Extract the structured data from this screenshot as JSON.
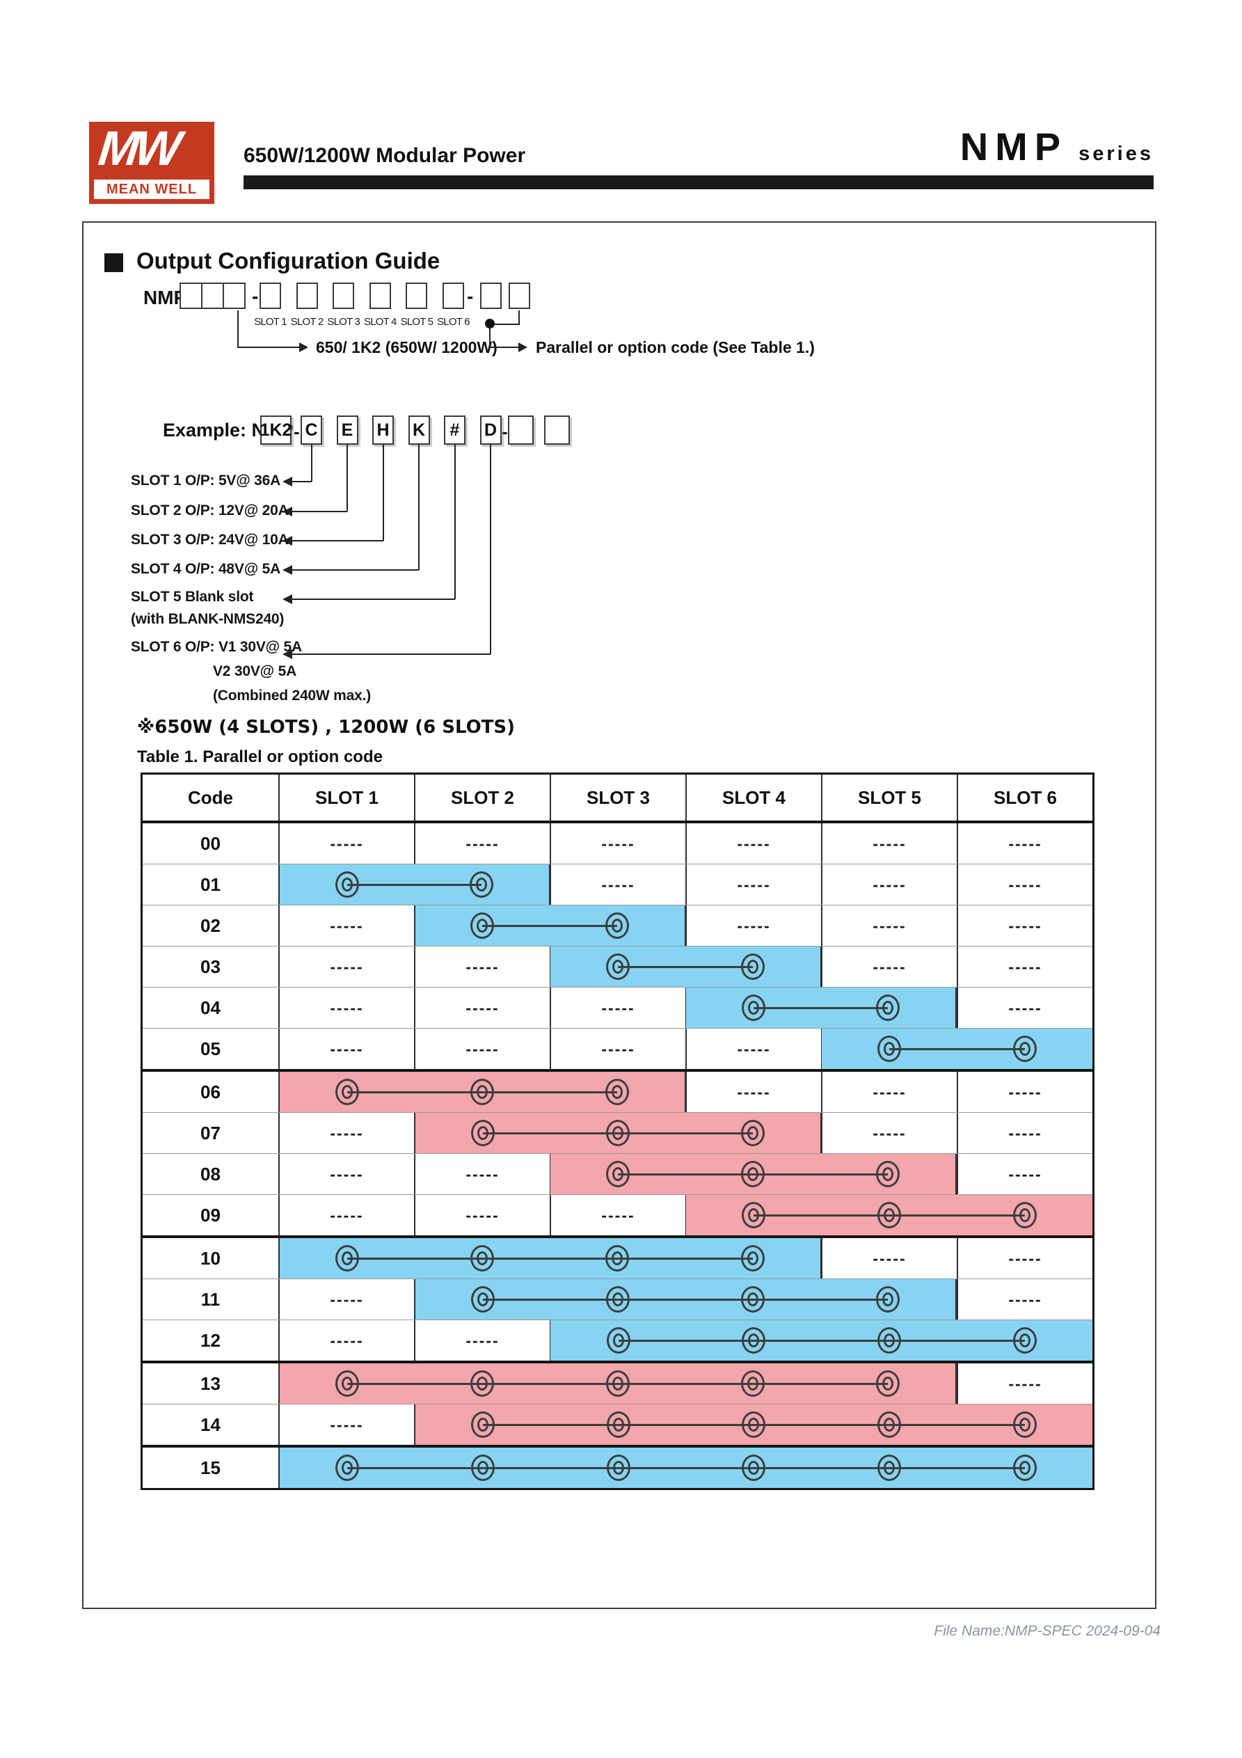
{
  "header": {
    "logo_mw": "MW",
    "logo_brand": "MEAN WELL",
    "subtitle": "650W/1200W Modular Power",
    "series_name": "NMP",
    "series_suffix": "series",
    "brand_color": "#c43a21"
  },
  "guide": {
    "section_title": "Output Configuration Guide",
    "model_prefix": "NMP",
    "dash": "-",
    "slot_labels": [
      "SLOT 1",
      "SLOT 2",
      "SLOT 3",
      "SLOT 4",
      "SLOT 5",
      "SLOT 6"
    ],
    "wattage_note": "650/ 1K2 (650W/ 1200W)",
    "parallel_note": "Parallel or option code (See Table 1.)"
  },
  "example": {
    "prefix": "Example: NMP",
    "model_code": "1K2",
    "dash": "-",
    "slot_codes": [
      "C",
      "E",
      "H",
      "K",
      "#",
      "D"
    ],
    "rows": [
      {
        "label": "SLOT 1  O/P: 5V@ 36A"
      },
      {
        "label": "SLOT 2  O/P: 12V@ 20A"
      },
      {
        "label": "SLOT 3  O/P: 24V@ 10A"
      },
      {
        "label": "SLOT 4  O/P: 48V@ 5A"
      },
      {
        "label": "SLOT 5  Blank slot",
        "sub": "(with BLANK-NMS240)"
      },
      {
        "label": "SLOT 6  O/P: V1  30V@ 5A",
        "sub": "V2  30V@ 5A",
        "sub2": "(Combined 240W max.)"
      }
    ]
  },
  "notes": {
    "slots_note": "※650W (4 SLOTS) , 1200W (6 SLOTS)",
    "table_caption": "Table 1. Parallel or option code"
  },
  "option_table": {
    "headers": [
      "Code",
      "SLOT 1",
      "SLOT 2",
      "SLOT 3",
      "SLOT 4",
      "SLOT 5",
      "SLOT 6"
    ],
    "empty_marker": "-----",
    "colors": {
      "blue": "#86d4f2",
      "pink": "#f3a6ab"
    },
    "group_breaks_after": [
      "05",
      "09",
      "12",
      "14"
    ],
    "rows": [
      {
        "code": "00",
        "start": 0,
        "end": 0,
        "color": null
      },
      {
        "code": "01",
        "start": 1,
        "end": 2,
        "color": "blue"
      },
      {
        "code": "02",
        "start": 2,
        "end": 3,
        "color": "blue"
      },
      {
        "code": "03",
        "start": 3,
        "end": 4,
        "color": "blue"
      },
      {
        "code": "04",
        "start": 4,
        "end": 5,
        "color": "blue"
      },
      {
        "code": "05",
        "start": 5,
        "end": 6,
        "color": "blue"
      },
      {
        "code": "06",
        "start": 1,
        "end": 3,
        "color": "pink"
      },
      {
        "code": "07",
        "start": 2,
        "end": 4,
        "color": "pink"
      },
      {
        "code": "08",
        "start": 3,
        "end": 5,
        "color": "pink"
      },
      {
        "code": "09",
        "start": 4,
        "end": 6,
        "color": "pink"
      },
      {
        "code": "10",
        "start": 1,
        "end": 4,
        "color": "blue"
      },
      {
        "code": "11",
        "start": 2,
        "end": 5,
        "color": "blue"
      },
      {
        "code": "12",
        "start": 3,
        "end": 6,
        "color": "blue"
      },
      {
        "code": "13",
        "start": 1,
        "end": 5,
        "color": "pink"
      },
      {
        "code": "14",
        "start": 2,
        "end": 6,
        "color": "pink"
      },
      {
        "code": "15",
        "start": 1,
        "end": 6,
        "color": "blue"
      }
    ]
  },
  "footer": {
    "file_name": "File Name:NMP-SPEC  2024-09-04"
  }
}
